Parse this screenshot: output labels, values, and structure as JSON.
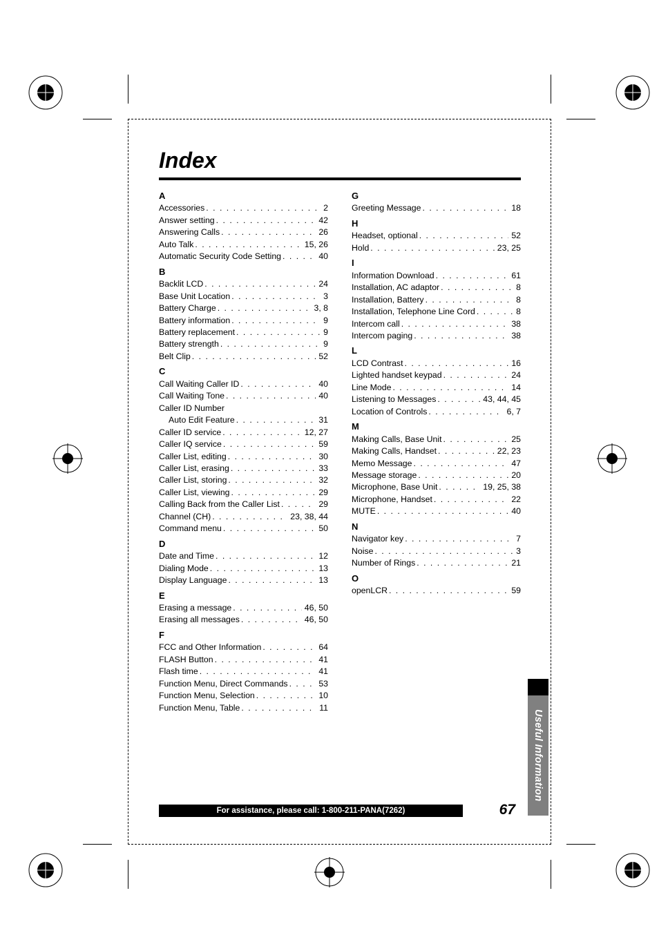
{
  "title": "Index",
  "page_number": "67",
  "footer_text": "For assistance, please call: 1-800-211-PANA(7262)",
  "side_tab": "Useful Information",
  "colors": {
    "black": "#000000",
    "gray_tab": "#808080",
    "white": "#ffffff"
  },
  "fonts": {
    "body_size_pt": 9,
    "title_size_pt": 24,
    "tab_size_pt": 11,
    "footer_size_pt": 8.5
  },
  "left_column": [
    {
      "type": "header",
      "text": "A"
    },
    {
      "type": "entry",
      "label": "Accessories",
      "pages": "2"
    },
    {
      "type": "entry",
      "label": "Answer setting",
      "pages": "42"
    },
    {
      "type": "entry",
      "label": "Answering Calls",
      "pages": "26"
    },
    {
      "type": "entry",
      "label": "Auto Talk",
      "pages": "15, 26"
    },
    {
      "type": "entry",
      "label": "Automatic Security Code Setting",
      "pages": "40"
    },
    {
      "type": "header",
      "text": "B"
    },
    {
      "type": "entry",
      "label": "Backlit LCD",
      "pages": "24"
    },
    {
      "type": "entry",
      "label": "Base Unit Location",
      "pages": "3"
    },
    {
      "type": "entry",
      "label": "Battery Charge",
      "pages": "3, 8"
    },
    {
      "type": "entry",
      "label": "Battery information",
      "pages": "9"
    },
    {
      "type": "entry",
      "label": "Battery replacement",
      "pages": "9"
    },
    {
      "type": "entry",
      "label": "Battery strength",
      "pages": "9"
    },
    {
      "type": "entry",
      "label": "Belt Clip",
      "pages": "52"
    },
    {
      "type": "header",
      "text": "C"
    },
    {
      "type": "entry",
      "label": "Call Waiting Caller ID",
      "pages": "40"
    },
    {
      "type": "entry",
      "label": "Call Waiting Tone",
      "pages": "40"
    },
    {
      "type": "entry",
      "label": "Caller ID Number",
      "pages": ""
    },
    {
      "type": "entry",
      "label": "Auto Edit Feature",
      "pages": "31",
      "indent": true
    },
    {
      "type": "entry",
      "label": "Caller ID service",
      "pages": "12, 27"
    },
    {
      "type": "entry",
      "label": "Caller IQ service",
      "pages": "59"
    },
    {
      "type": "entry",
      "label": "Caller List, editing",
      "pages": "30"
    },
    {
      "type": "entry",
      "label": "Caller List, erasing",
      "pages": "33"
    },
    {
      "type": "entry",
      "label": "Caller List, storing",
      "pages": "32"
    },
    {
      "type": "entry",
      "label": "Caller List, viewing",
      "pages": "29"
    },
    {
      "type": "entry",
      "label": "Calling Back from the Caller List",
      "pages": "29"
    },
    {
      "type": "entry",
      "label": "Channel (CH)",
      "pages": "23, 38, 44"
    },
    {
      "type": "entry",
      "label": "Command menu",
      "pages": "50"
    },
    {
      "type": "header",
      "text": "D"
    },
    {
      "type": "entry",
      "label": "Date and Time",
      "pages": "12"
    },
    {
      "type": "entry",
      "label": "Dialing Mode",
      "pages": "13"
    },
    {
      "type": "entry",
      "label": "Display Language",
      "pages": "13"
    },
    {
      "type": "header",
      "text": "E"
    },
    {
      "type": "entry",
      "label": "Erasing a message",
      "pages": "46, 50"
    },
    {
      "type": "entry",
      "label": "Erasing all messages",
      "pages": "46, 50"
    },
    {
      "type": "header",
      "text": "F"
    },
    {
      "type": "entry",
      "label": "FCC and Other Information",
      "pages": "64"
    },
    {
      "type": "entry",
      "label": "FLASH Button",
      "pages": "41"
    },
    {
      "type": "entry",
      "label": "Flash time",
      "pages": "41"
    },
    {
      "type": "entry",
      "label": "Function Menu, Direct Commands",
      "pages": "53"
    },
    {
      "type": "entry",
      "label": "Function Menu, Selection",
      "pages": "10"
    },
    {
      "type": "entry",
      "label": "Function Menu, Table",
      "pages": "11"
    }
  ],
  "right_column": [
    {
      "type": "header",
      "text": "G"
    },
    {
      "type": "entry",
      "label": "Greeting Message",
      "pages": "18"
    },
    {
      "type": "header",
      "text": "H"
    },
    {
      "type": "entry",
      "label": "Headset, optional",
      "pages": "52"
    },
    {
      "type": "entry",
      "label": "Hold",
      "pages": "23, 25"
    },
    {
      "type": "header",
      "text": "I"
    },
    {
      "type": "entry",
      "label": "Information Download",
      "pages": "61"
    },
    {
      "type": "entry",
      "label": "Installation, AC adaptor",
      "pages": "8"
    },
    {
      "type": "entry",
      "label": "Installation, Battery",
      "pages": "8"
    },
    {
      "type": "entry",
      "label": "Installation, Telephone Line Cord",
      "pages": "8"
    },
    {
      "type": "entry",
      "label": "Intercom call",
      "pages": "38"
    },
    {
      "type": "entry",
      "label": "Intercom paging",
      "pages": "38"
    },
    {
      "type": "header",
      "text": "L"
    },
    {
      "type": "entry",
      "label": "LCD Contrast",
      "pages": "16"
    },
    {
      "type": "entry",
      "label": "Lighted handset keypad",
      "pages": "24"
    },
    {
      "type": "entry",
      "label": "Line Mode",
      "pages": "14"
    },
    {
      "type": "entry",
      "label": "Listening to Messages",
      "pages": "43, 44, 45"
    },
    {
      "type": "entry",
      "label": "Location of Controls",
      "pages": "6, 7"
    },
    {
      "type": "header",
      "text": "M"
    },
    {
      "type": "entry",
      "label": "Making Calls, Base Unit",
      "pages": "25"
    },
    {
      "type": "entry",
      "label": "Making Calls, Handset",
      "pages": "22, 23"
    },
    {
      "type": "entry",
      "label": "Memo Message",
      "pages": "47"
    },
    {
      "type": "entry",
      "label": "Message storage",
      "pages": "20"
    },
    {
      "type": "entry",
      "label": "Microphone, Base Unit",
      "pages": "19, 25, 38"
    },
    {
      "type": "entry",
      "label": "Microphone, Handset",
      "pages": "22"
    },
    {
      "type": "entry",
      "label": "MUTE",
      "pages": "40"
    },
    {
      "type": "header",
      "text": "N"
    },
    {
      "type": "entry",
      "label": "Navigator key",
      "pages": "7"
    },
    {
      "type": "entry",
      "label": "Noise",
      "pages": "3"
    },
    {
      "type": "entry",
      "label": "Number of Rings",
      "pages": "21"
    },
    {
      "type": "header",
      "text": "O"
    },
    {
      "type": "entry",
      "label": "openLCR",
      "pages": "59"
    }
  ]
}
